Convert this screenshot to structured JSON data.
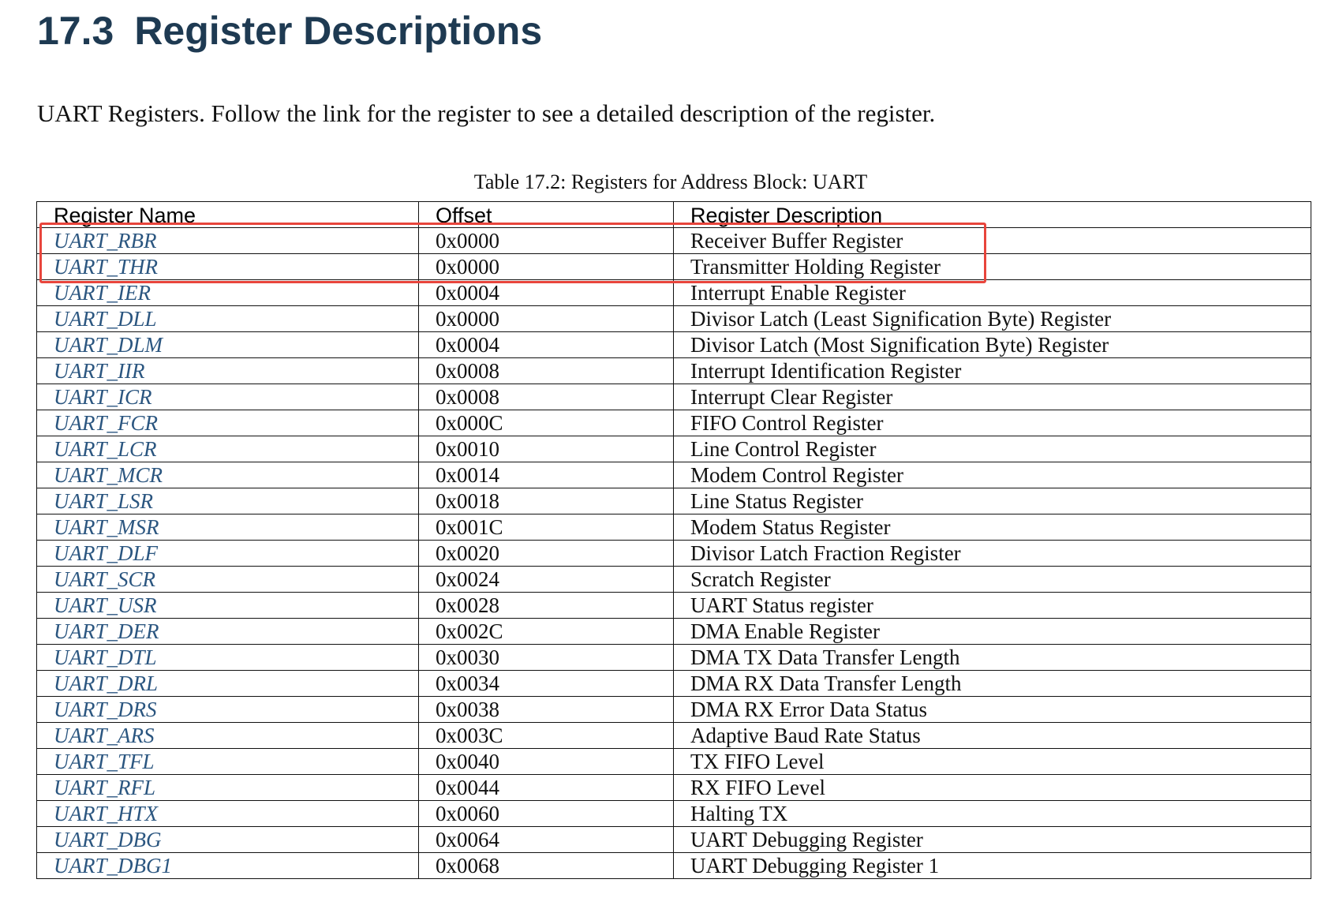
{
  "section": {
    "number": "17.3",
    "title": "Register Descriptions"
  },
  "intro": "UART Registers. Follow the link for the register to see a detailed description of the register.",
  "table": {
    "caption": "Table 17.2: Registers for Address Block: UART",
    "headers": [
      "Register Name",
      "Offset",
      "Register Description"
    ],
    "rows": [
      {
        "name": "UART_RBR",
        "offset": "0x0000",
        "description": "Receiver Buffer Register"
      },
      {
        "name": "UART_THR",
        "offset": "0x0000",
        "description": "Transmitter Holding Register"
      },
      {
        "name": "UART_IER",
        "offset": "0x0004",
        "description": "Interrupt Enable Register"
      },
      {
        "name": "UART_DLL",
        "offset": "0x0000",
        "description": "Divisor Latch (Least Signification Byte) Register"
      },
      {
        "name": "UART_DLM",
        "offset": "0x0004",
        "description": "Divisor Latch (Most Signification Byte) Register"
      },
      {
        "name": "UART_IIR",
        "offset": "0x0008",
        "description": "Interrupt Identification Register"
      },
      {
        "name": "UART_ICR",
        "offset": "0x0008",
        "description": "Interrupt Clear Register"
      },
      {
        "name": "UART_FCR",
        "offset": "0x000C",
        "description": "FIFO Control Register"
      },
      {
        "name": "UART_LCR",
        "offset": "0x0010",
        "description": "Line Control Register"
      },
      {
        "name": "UART_MCR",
        "offset": "0x0014",
        "description": "Modem Control Register"
      },
      {
        "name": "UART_LSR",
        "offset": "0x0018",
        "description": "Line Status Register"
      },
      {
        "name": "UART_MSR",
        "offset": "0x001C",
        "description": "Modem Status Register"
      },
      {
        "name": "UART_DLF",
        "offset": "0x0020",
        "description": "Divisor Latch Fraction Register"
      },
      {
        "name": "UART_SCR",
        "offset": "0x0024",
        "description": "Scratch Register"
      },
      {
        "name": "UART_USR",
        "offset": "0x0028",
        "description": "UART Status register"
      },
      {
        "name": "UART_DER",
        "offset": "0x002C",
        "description": "DMA Enable Register"
      },
      {
        "name": "UART_DTL",
        "offset": "0x0030",
        "description": "DMA TX Data Transfer Length"
      },
      {
        "name": "UART_DRL",
        "offset": "0x0034",
        "description": "DMA RX Data Transfer Length"
      },
      {
        "name": "UART_DRS",
        "offset": "0x0038",
        "description": "DMA RX Error Data Status"
      },
      {
        "name": "UART_ARS",
        "offset": "0x003C",
        "description": "Adaptive Baud Rate Status"
      },
      {
        "name": "UART_TFL",
        "offset": "0x0040",
        "description": "TX FIFO Level"
      },
      {
        "name": "UART_RFL",
        "offset": "0x0044",
        "description": "RX FIFO Level"
      },
      {
        "name": "UART_HTX",
        "offset": "0x0060",
        "description": "Halting TX"
      },
      {
        "name": "UART_DBG",
        "offset": "0x0064",
        "description": "UART Debugging Register"
      },
      {
        "name": "UART_DBG1",
        "offset": "0x0068",
        "description": "UART Debugging Register 1"
      }
    ]
  },
  "highlight": {
    "color": "#e8453c",
    "rows": [
      "UART_RBR",
      "UART_THR"
    ]
  },
  "colors": {
    "heading": "#1e3a52",
    "link": "#2b5680"
  }
}
